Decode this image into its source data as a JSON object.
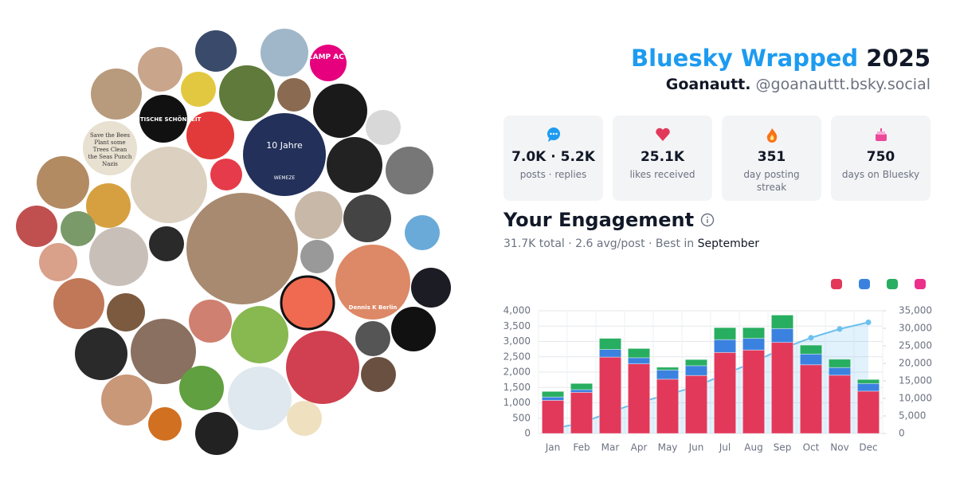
{
  "header": {
    "title": "Bluesky Wrapped",
    "year": "2025",
    "display_name": "Goanautt.",
    "handle": "@goanauttt.bsky.social"
  },
  "stats": [
    {
      "value": "7.0K · 5.2K",
      "label": "posts · replies"
    },
    {
      "value": "25.1K",
      "label": "likes received"
    },
    {
      "value": "351",
      "label": "day posting streak"
    },
    {
      "value": "750",
      "label": "days on Bluesky"
    }
  ],
  "engagement": {
    "title": "Your Engagement",
    "summary": "31.7K total · 2.6 avg/post · Best in",
    "best_month": "September"
  },
  "avatar_texts": [
    "CAMP ACT",
    "POLITISCHE SCHÖNHEIT",
    "10 Jahre",
    "WEMEZE",
    "Dennis K Berlin",
    "Save the Bees Plant some Trees Clean the Seas Punch Nazis"
  ],
  "chart_data": {
    "type": "bar",
    "stacked": true,
    "categories": [
      "Jan",
      "Feb",
      "Mar",
      "Apr",
      "May",
      "Jun",
      "Jul",
      "Aug",
      "Sep",
      "Oct",
      "Nov",
      "Dec"
    ],
    "series": [
      {
        "color": "#e2395b",
        "values": [
          1080,
          1340,
          2490,
          2270,
          1770,
          1890,
          2640,
          2720,
          2970,
          2240,
          1900,
          1380
        ]
      },
      {
        "color": "#3b82e0",
        "values": [
          110,
          90,
          250,
          200,
          300,
          320,
          420,
          380,
          450,
          350,
          250,
          250
        ]
      },
      {
        "color": "#27ae60",
        "values": [
          180,
          200,
          360,
          300,
          90,
          200,
          390,
          350,
          440,
          290,
          270,
          130
        ]
      },
      {
        "type": "line",
        "axis": "y2",
        "color": "#6cc0ee",
        "values": [
          1370,
          3000,
          6100,
          8880,
          11040,
          13450,
          16900,
          20350,
          24210,
          27300,
          29800,
          31700
        ]
      }
    ],
    "legend_colors": [
      "#e2395b",
      "#3b82e0",
      "#27ae60",
      "#ec2f8a"
    ],
    "ylim": [
      0,
      4000
    ],
    "yticks": [
      0,
      500,
      {
        "value": 1000,
        "label": "1,000"
      },
      {
        "value": 1500,
        "label": "1,500"
      },
      {
        "value": 2000,
        "label": "2,000"
      },
      {
        "value": 2500,
        "label": "2,500"
      },
      {
        "value": 3000,
        "label": "3,000"
      },
      {
        "value": 3500,
        "label": "3,500"
      },
      {
        "value": 4000,
        "label": "4,000"
      }
    ],
    "y2lim": [
      0,
      35000
    ],
    "y2ticks": [
      0,
      {
        "value": 5000,
        "label": "5,000"
      },
      {
        "value": 10000,
        "label": "10,000"
      },
      {
        "value": 15000,
        "label": "15,000"
      },
      {
        "value": 20000,
        "label": "20,000"
      },
      {
        "value": 25000,
        "label": "25,000"
      },
      {
        "value": 30000,
        "label": "30,000"
      },
      {
        "value": 35000,
        "label": "35,000"
      }
    ],
    "grid": true
  }
}
